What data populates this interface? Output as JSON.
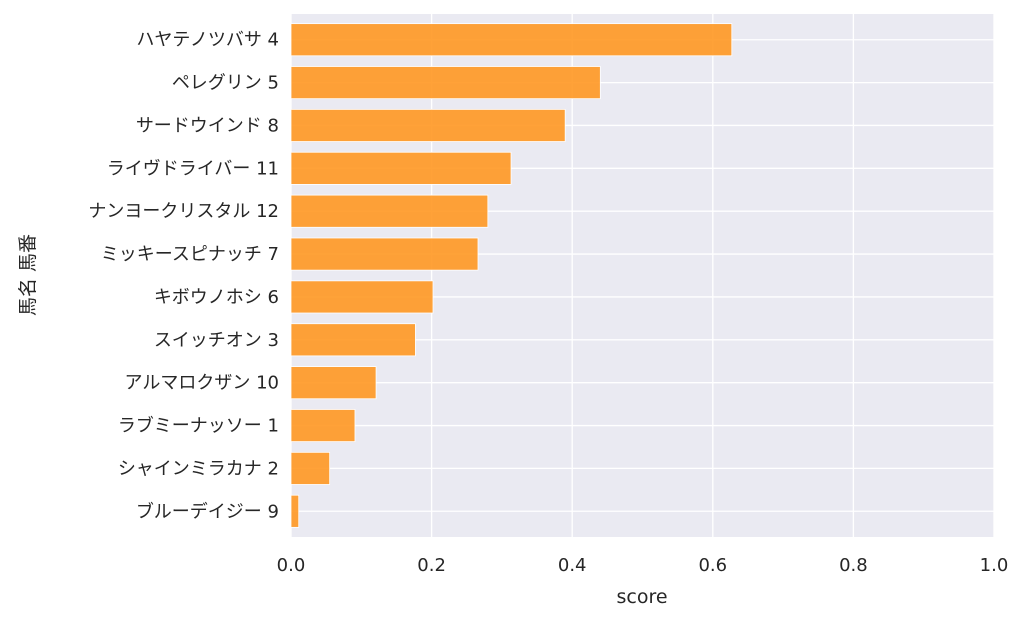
{
  "chart_data": {
    "type": "bar",
    "orientation": "horizontal",
    "xlabel": "score",
    "ylabel": "馬名 馬番",
    "xlim": [
      0.0,
      1.0
    ],
    "xticks": [
      "0.0",
      "0.2",
      "0.4",
      "0.6",
      "0.8",
      "1.0"
    ],
    "grid": true,
    "bar_color": "#ff9822",
    "background_color": "#eaeaf2",
    "categories": [
      "ハヤテノツバサ 4",
      "ペレグリン 5",
      "サードウインド 8",
      "ライヴドライバー 11",
      "ナンヨークリスタル 12",
      "ミッキースピナッチ 7",
      "キボウノホシ 6",
      "スイッチオン 3",
      "アルマロクザン 10",
      "ラブミーナッソー 1",
      "シャインミラカナ 2",
      "ブルーデイジー 9"
    ],
    "values": [
      0.627,
      0.44,
      0.39,
      0.313,
      0.28,
      0.266,
      0.202,
      0.177,
      0.121,
      0.091,
      0.055,
      0.011
    ]
  }
}
